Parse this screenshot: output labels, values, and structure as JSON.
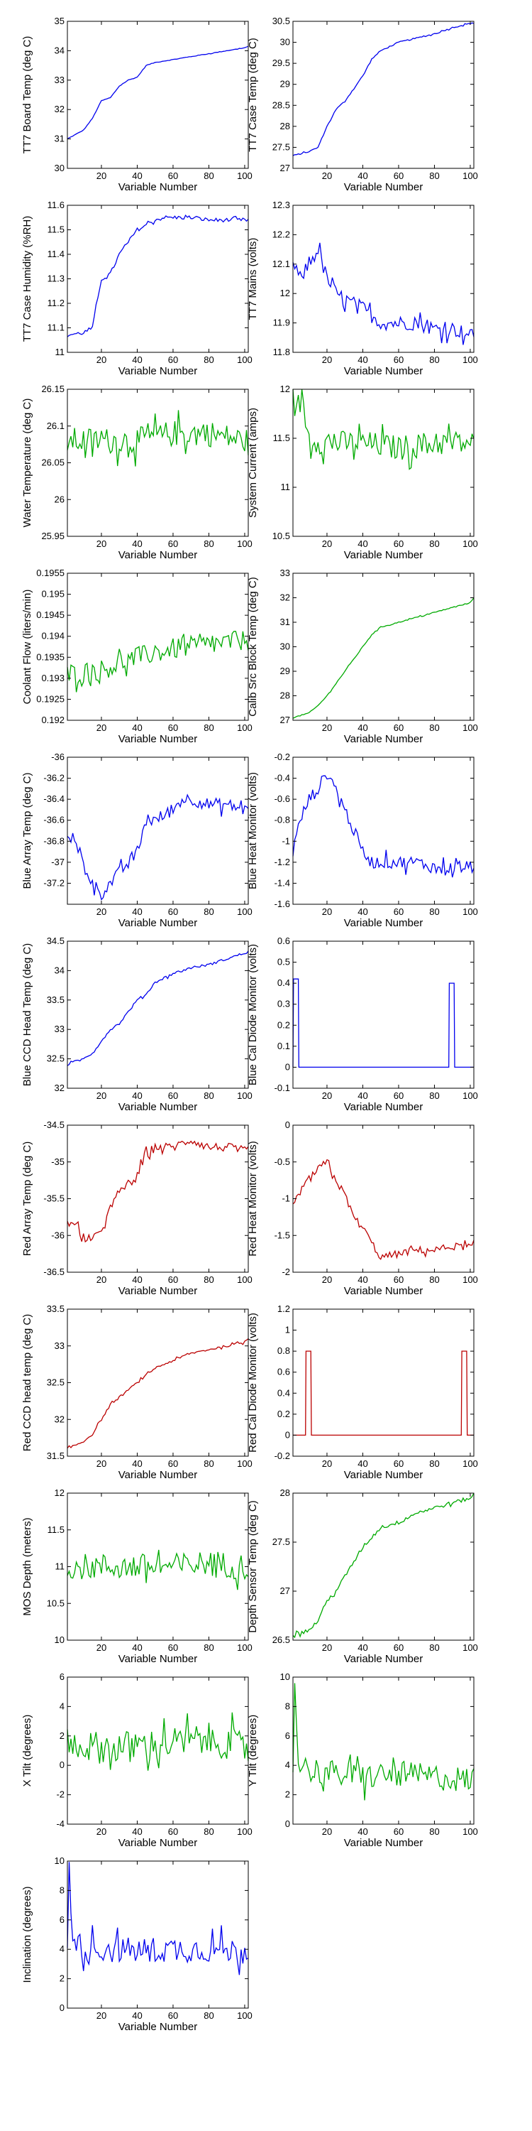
{
  "chart_data": [
    {
      "type": "line",
      "xlabel": "Variable Number",
      "ylabel": "TT7 Board Temp (deg C)",
      "xlim": [
        1,
        102
      ],
      "ylim": [
        30,
        35
      ],
      "xticks": [
        "20",
        "40",
        "60",
        "80",
        "100"
      ],
      "yticks": [
        "30",
        "31",
        "32",
        "33",
        "34",
        "35"
      ],
      "color": "#0000ee",
      "noise": 0.01,
      "x": [
        1,
        10,
        15,
        20,
        25,
        30,
        35,
        40,
        45,
        50,
        60,
        70,
        80,
        90,
        100,
        102
      ],
      "y": [
        31.0,
        31.3,
        31.7,
        32.3,
        32.4,
        32.8,
        33.0,
        33.1,
        33.5,
        33.6,
        33.7,
        33.8,
        33.9,
        34.0,
        34.1,
        34.15
      ]
    },
    {
      "type": "line",
      "xlabel": "Variable Number",
      "ylabel": "TT7 Case Temp (deg C)",
      "xlim": [
        1,
        102
      ],
      "ylim": [
        27,
        30.5
      ],
      "xticks": [
        "20",
        "40",
        "60",
        "80",
        "100"
      ],
      "yticks": [
        "27",
        "27.5",
        "28",
        "28.5",
        "29",
        "29.5",
        "30",
        "30.5"
      ],
      "color": "#0000ee",
      "noise": 0.015,
      "x": [
        1,
        10,
        15,
        20,
        25,
        30,
        35,
        40,
        45,
        50,
        60,
        70,
        80,
        90,
        100,
        102
      ],
      "y": [
        27.3,
        27.4,
        27.5,
        28.0,
        28.4,
        28.6,
        28.9,
        29.2,
        29.6,
        29.8,
        30.0,
        30.1,
        30.2,
        30.35,
        30.45,
        30.45
      ]
    },
    {
      "type": "line",
      "xlabel": "Variable Number",
      "ylabel": "TT7 Case Humidity (%RH)",
      "xlim": [
        1,
        102
      ],
      "ylim": [
        11,
        11.6
      ],
      "xticks": [
        "20",
        "40",
        "60",
        "80",
        "100"
      ],
      "yticks": [
        "11",
        "11.1",
        "11.2",
        "11.3",
        "11.4",
        "11.5",
        "11.6"
      ],
      "color": "#0000ee",
      "noise": 0.008,
      "x": [
        1,
        10,
        15,
        20,
        25,
        30,
        35,
        40,
        45,
        50,
        55,
        60,
        70,
        80,
        90,
        100,
        102
      ],
      "y": [
        11.07,
        11.08,
        11.1,
        11.3,
        11.32,
        11.4,
        11.45,
        11.5,
        11.52,
        11.54,
        11.55,
        11.55,
        11.55,
        11.54,
        11.54,
        11.54,
        11.54
      ]
    },
    {
      "type": "line",
      "xlabel": "Variable Number",
      "ylabel": "TT7 Mains  (volts)",
      "xlim": [
        1,
        102
      ],
      "ylim": [
        11.8,
        12.3
      ],
      "xticks": [
        "20",
        "40",
        "60",
        "80",
        "100"
      ],
      "yticks": [
        "11.8",
        "11.9",
        "12",
        "12.1",
        "12.2",
        "12.3"
      ],
      "color": "#0000ee",
      "noise": 0.025,
      "x": [
        1,
        5,
        10,
        15,
        20,
        25,
        30,
        40,
        50,
        60,
        70,
        80,
        90,
        100,
        102
      ],
      "y": [
        12.1,
        12.05,
        12.1,
        12.15,
        12.05,
        12.0,
        11.98,
        11.95,
        11.9,
        11.9,
        11.9,
        11.88,
        11.88,
        11.86,
        11.85
      ]
    },
    {
      "type": "line",
      "xlabel": "Variable Number",
      "ylabel": "Water Temperature (deg C)",
      "xlim": [
        1,
        102
      ],
      "ylim": [
        25.95,
        26.15
      ],
      "xticks": [
        "20",
        "40",
        "60",
        "80",
        "100"
      ],
      "yticks": [
        "25.95",
        "26",
        "26.05",
        "26.1",
        "26.15"
      ],
      "color": "#00aa00",
      "noise": 0.018,
      "x": [
        1,
        20,
        40,
        60,
        80,
        100,
        102
      ],
      "y": [
        26.08,
        26.08,
        26.08,
        26.09,
        26.09,
        26.08,
        26.08
      ]
    },
    {
      "type": "line",
      "xlabel": "Variable Number",
      "ylabel": "System Current (amps)",
      "xlim": [
        1,
        102
      ],
      "ylim": [
        10.5,
        12
      ],
      "xticks": [
        "20",
        "40",
        "60",
        "80",
        "100"
      ],
      "yticks": [
        "10.5",
        "11",
        "11.5",
        "12"
      ],
      "color": "#00aa00",
      "noise": 0.13,
      "x": [
        1,
        3,
        6,
        10,
        20,
        40,
        60,
        80,
        100,
        102
      ],
      "y": [
        11.9,
        11.8,
        11.9,
        11.5,
        11.45,
        11.45,
        11.4,
        11.45,
        11.45,
        11.45
      ]
    },
    {
      "type": "line",
      "xlabel": "Variable Number",
      "ylabel": "Coolant Flow (liters/min)",
      "xlim": [
        1,
        102
      ],
      "ylim": [
        0.192,
        0.1955
      ],
      "xticks": [
        "20",
        "40",
        "60",
        "80",
        "100"
      ],
      "yticks": [
        "0.192",
        "0.1925",
        "0.193",
        "0.1935",
        "0.194",
        "0.1945",
        "0.195",
        "0.1955"
      ],
      "color": "#00aa00",
      "noise": 0.00025,
      "x": [
        1,
        20,
        40,
        60,
        80,
        100,
        102
      ],
      "y": [
        0.1931,
        0.1932,
        0.1935,
        0.1937,
        0.1938,
        0.1939,
        0.1939
      ]
    },
    {
      "type": "line",
      "xlabel": "Variable Number",
      "ylabel": "Calib Src Block Temp (deg C)",
      "xlim": [
        1,
        102
      ],
      "ylim": [
        27,
        33
      ],
      "xticks": [
        "20",
        "40",
        "60",
        "80",
        "100"
      ],
      "yticks": [
        "27",
        "28",
        "29",
        "30",
        "31",
        "32",
        "33"
      ],
      "color": "#00aa00",
      "noise": 0.02,
      "x": [
        1,
        10,
        15,
        20,
        25,
        30,
        35,
        40,
        45,
        50,
        60,
        70,
        80,
        90,
        100,
        102
      ],
      "y": [
        27.1,
        27.3,
        27.6,
        28.0,
        28.5,
        29.0,
        29.5,
        30.0,
        30.5,
        30.8,
        31.0,
        31.2,
        31.4,
        31.6,
        31.8,
        32.0
      ]
    },
    {
      "type": "line",
      "xlabel": "Variable Number",
      "ylabel": "Blue Array Temp (deg C)",
      "xlim": [
        1,
        102
      ],
      "ylim": [
        -37.4,
        -36
      ],
      "xticks": [
        "20",
        "40",
        "60",
        "80",
        "100"
      ],
      "yticks": [
        "-37.2",
        "-37",
        "-36.8",
        "-36.6",
        "-36.4",
        "-36.2",
        "-36"
      ],
      "color": "#0000ee",
      "noise": 0.06,
      "x": [
        1,
        10,
        15,
        20,
        30,
        40,
        45,
        50,
        60,
        65,
        70,
        80,
        90,
        100,
        102
      ],
      "y": [
        -36.7,
        -37.0,
        -37.2,
        -37.3,
        -37.1,
        -36.9,
        -36.6,
        -36.6,
        -36.5,
        -36.4,
        -36.4,
        -36.45,
        -36.45,
        -36.5,
        -36.45
      ]
    },
    {
      "type": "line",
      "xlabel": "Variable Number",
      "ylabel": "Blue Heat Monitor (volts)",
      "xlim": [
        1,
        102
      ],
      "ylim": [
        -1.6,
        -0.2
      ],
      "xticks": [
        "20",
        "40",
        "60",
        "80",
        "100"
      ],
      "yticks": [
        "-1.6",
        "-1.4",
        "-1.2",
        "-1",
        "-0.8",
        "-0.6",
        "-0.4",
        "-0.2"
      ],
      "color": "#0000ee",
      "noise": 0.06,
      "x": [
        1,
        5,
        10,
        15,
        20,
        25,
        30,
        35,
        40,
        45,
        50,
        60,
        70,
        80,
        90,
        100,
        102
      ],
      "y": [
        -1.1,
        -0.8,
        -0.6,
        -0.5,
        -0.35,
        -0.5,
        -0.7,
        -0.9,
        -1.1,
        -1.2,
        -1.2,
        -1.2,
        -1.2,
        -1.25,
        -1.25,
        -1.25,
        -1.25
      ]
    },
    {
      "type": "line",
      "xlabel": "Variable Number",
      "ylabel": "Blue CCD Head Temp (deg C)",
      "xlim": [
        1,
        102
      ],
      "ylim": [
        32,
        34.5
      ],
      "xticks": [
        "20",
        "40",
        "60",
        "80",
        "100"
      ],
      "yticks": [
        "32",
        "32.5",
        "33",
        "33.5",
        "34",
        "34.5"
      ],
      "color": "#0000ee",
      "noise": 0.02,
      "x": [
        1,
        10,
        15,
        20,
        25,
        30,
        35,
        40,
        45,
        50,
        60,
        70,
        80,
        90,
        100,
        102
      ],
      "y": [
        32.4,
        32.5,
        32.6,
        32.8,
        33.0,
        33.1,
        33.3,
        33.5,
        33.6,
        33.8,
        33.95,
        34.05,
        34.1,
        34.2,
        34.3,
        34.3
      ]
    },
    {
      "type": "line",
      "xlabel": "Variable Number",
      "ylabel": "Blue Cal Diode Monitor (volts)",
      "xlim": [
        1,
        102
      ],
      "ylim": [
        -0.1,
        0.6
      ],
      "xticks": [
        "20",
        "40",
        "60",
        "80",
        "100"
      ],
      "yticks": [
        "-0.1",
        "0",
        "0.1",
        "0.2",
        "0.3",
        "0.4",
        "0.5",
        "0.6"
      ],
      "color": "#0000ee",
      "noise": 0,
      "x": [
        1,
        1.3,
        4,
        4.3,
        88,
        88.3,
        91,
        91.3,
        102
      ],
      "y": [
        0,
        0.42,
        0.42,
        0,
        0,
        0.4,
        0.4,
        0,
        0
      ]
    },
    {
      "type": "line",
      "xlabel": "Variable Number",
      "ylabel": "Red Array Temp (deg C)",
      "xlim": [
        1,
        102
      ],
      "ylim": [
        -36.5,
        -34.5
      ],
      "xticks": [
        "20",
        "40",
        "60",
        "80",
        "100"
      ],
      "yticks": [
        "-36.5",
        "-36",
        "-35.5",
        "-35",
        "-34.5"
      ],
      "color": "#bb0000",
      "noise": 0.06,
      "x": [
        1,
        10,
        15,
        20,
        30,
        40,
        45,
        50,
        60,
        70,
        80,
        90,
        100,
        102
      ],
      "y": [
        -35.8,
        -36.0,
        -36.1,
        -35.9,
        -35.4,
        -35.2,
        -34.9,
        -34.8,
        -34.8,
        -34.7,
        -34.8,
        -34.8,
        -34.85,
        -34.85
      ]
    },
    {
      "type": "line",
      "xlabel": "Variable Number",
      "ylabel": "Red Heat Monitor (volts)",
      "xlim": [
        1,
        102
      ],
      "ylim": [
        -2,
        0
      ],
      "xticks": [
        "20",
        "40",
        "60",
        "80",
        "100"
      ],
      "yticks": [
        "-2",
        "-1.5",
        "-1",
        "-0.5",
        "0"
      ],
      "color": "#bb0000",
      "noise": 0.05,
      "x": [
        1,
        5,
        10,
        15,
        20,
        25,
        30,
        35,
        40,
        45,
        50,
        60,
        70,
        80,
        90,
        100,
        102
      ],
      "y": [
        -1.1,
        -0.9,
        -0.75,
        -0.6,
        -0.5,
        -0.75,
        -0.95,
        -1.25,
        -1.4,
        -1.6,
        -1.8,
        -1.75,
        -1.7,
        -1.7,
        -1.65,
        -1.65,
        -1.65
      ]
    },
    {
      "type": "line",
      "xlabel": "Variable Number",
      "ylabel": "Red CCD head temp (deg C)",
      "xlim": [
        1,
        102
      ],
      "ylim": [
        31.5,
        33.5
      ],
      "xticks": [
        "20",
        "40",
        "60",
        "80",
        "100"
      ],
      "yticks": [
        "31.5",
        "32",
        "32.5",
        "33",
        "33.5"
      ],
      "color": "#bb0000",
      "noise": 0.015,
      "x": [
        1,
        10,
        15,
        20,
        25,
        30,
        35,
        40,
        45,
        50,
        60,
        70,
        80,
        90,
        100,
        102
      ],
      "y": [
        31.6,
        31.7,
        31.8,
        32.0,
        32.2,
        32.3,
        32.4,
        32.5,
        32.6,
        32.7,
        32.8,
        32.9,
        32.95,
        33.0,
        33.05,
        33.1
      ]
    },
    {
      "type": "line",
      "xlabel": "Variable Number",
      "ylabel": "Red Cal Diode Monitor (volts)",
      "xlim": [
        1,
        102
      ],
      "ylim": [
        -0.2,
        1.2
      ],
      "xticks": [
        "20",
        "40",
        "60",
        "80",
        "100"
      ],
      "yticks": [
        "-0.2",
        "0",
        "0.2",
        "0.4",
        "0.6",
        "0.8",
        "1",
        "1.2"
      ],
      "color": "#bb0000",
      "noise": 0,
      "x": [
        1,
        8,
        8.3,
        11,
        11.3,
        95,
        95.3,
        98,
        98.3,
        102
      ],
      "y": [
        0,
        0,
        0.8,
        0.8,
        0,
        0,
        0.8,
        0.8,
        0,
        0
      ]
    },
    {
      "type": "line",
      "xlabel": "Variable Number",
      "ylabel": "MOS Depth  (meters)",
      "xlim": [
        1,
        102
      ],
      "ylim": [
        10,
        12
      ],
      "xticks": [
        "20",
        "40",
        "60",
        "80",
        "100"
      ],
      "yticks": [
        "10",
        "10.5",
        "11",
        "11.5",
        "12"
      ],
      "color": "#00aa00",
      "noise": 0.18,
      "x": [
        1,
        20,
        40,
        60,
        80,
        100,
        102
      ],
      "y": [
        11.0,
        11.0,
        11.0,
        11.0,
        11.05,
        11.0,
        11.0
      ]
    },
    {
      "type": "line",
      "xlabel": "Variable Number",
      "ylabel": "Depth Sensor Temp (deg C)",
      "xlim": [
        1,
        102
      ],
      "ylim": [
        26.5,
        28
      ],
      "xticks": [
        "20",
        "40",
        "60",
        "80",
        "100"
      ],
      "yticks": [
        "26.5",
        "27",
        "27.5",
        "28"
      ],
      "color": "#00aa00",
      "noise": 0.02,
      "x": [
        1,
        10,
        15,
        20,
        25,
        30,
        35,
        40,
        45,
        50,
        60,
        70,
        80,
        90,
        100,
        102
      ],
      "y": [
        26.55,
        26.6,
        26.7,
        26.9,
        27.0,
        27.15,
        27.3,
        27.45,
        27.55,
        27.65,
        27.7,
        27.8,
        27.85,
        27.9,
        27.95,
        28.0
      ]
    },
    {
      "type": "line",
      "xlabel": "Variable Number",
      "ylabel": "X Tilt  (degrees)",
      "xlim": [
        1,
        102
      ],
      "ylim": [
        -4,
        6
      ],
      "xticks": [
        "20",
        "40",
        "60",
        "80",
        "100"
      ],
      "yticks": [
        "-4",
        "-2",
        "0",
        "2",
        "4",
        "6"
      ],
      "color": "#00aa00",
      "noise": 1.1,
      "x": [
        1,
        20,
        40,
        60,
        80,
        100,
        102
      ],
      "y": [
        1.5,
        1.2,
        1.3,
        1.5,
        1.8,
        1.2,
        1.3
      ]
    },
    {
      "type": "line",
      "xlabel": "Variable Number",
      "ylabel": "Y Tilt  (degrees)",
      "xlim": [
        1,
        102
      ],
      "ylim": [
        0,
        10
      ],
      "xticks": [
        "20",
        "40",
        "60",
        "80",
        "100"
      ],
      "yticks": [
        "0",
        "2",
        "4",
        "6",
        "8",
        "10"
      ],
      "color": "#00aa00",
      "noise": 0.9,
      "x": [
        1,
        2,
        4,
        8,
        20,
        40,
        60,
        80,
        100,
        102
      ],
      "y": [
        3.5,
        9.5,
        4.5,
        3.8,
        3.5,
        3.2,
        3.4,
        3.2,
        3.0,
        3.2
      ]
    },
    {
      "type": "line",
      "xlabel": "Variable Number",
      "ylabel": "Inclination  (degrees)",
      "xlim": [
        1,
        102
      ],
      "ylim": [
        0,
        10
      ],
      "xticks": [
        "20",
        "40",
        "60",
        "80",
        "100"
      ],
      "yticks": [
        "0",
        "2",
        "4",
        "6",
        "8",
        "10"
      ],
      "color": "#0000ee",
      "noise": 0.9,
      "x": [
        1,
        2,
        4,
        8,
        20,
        40,
        60,
        80,
        100,
        102
      ],
      "y": [
        4.0,
        9.5,
        5.0,
        4.2,
        4.0,
        3.9,
        4.0,
        4.0,
        3.8,
        4.0
      ]
    }
  ]
}
